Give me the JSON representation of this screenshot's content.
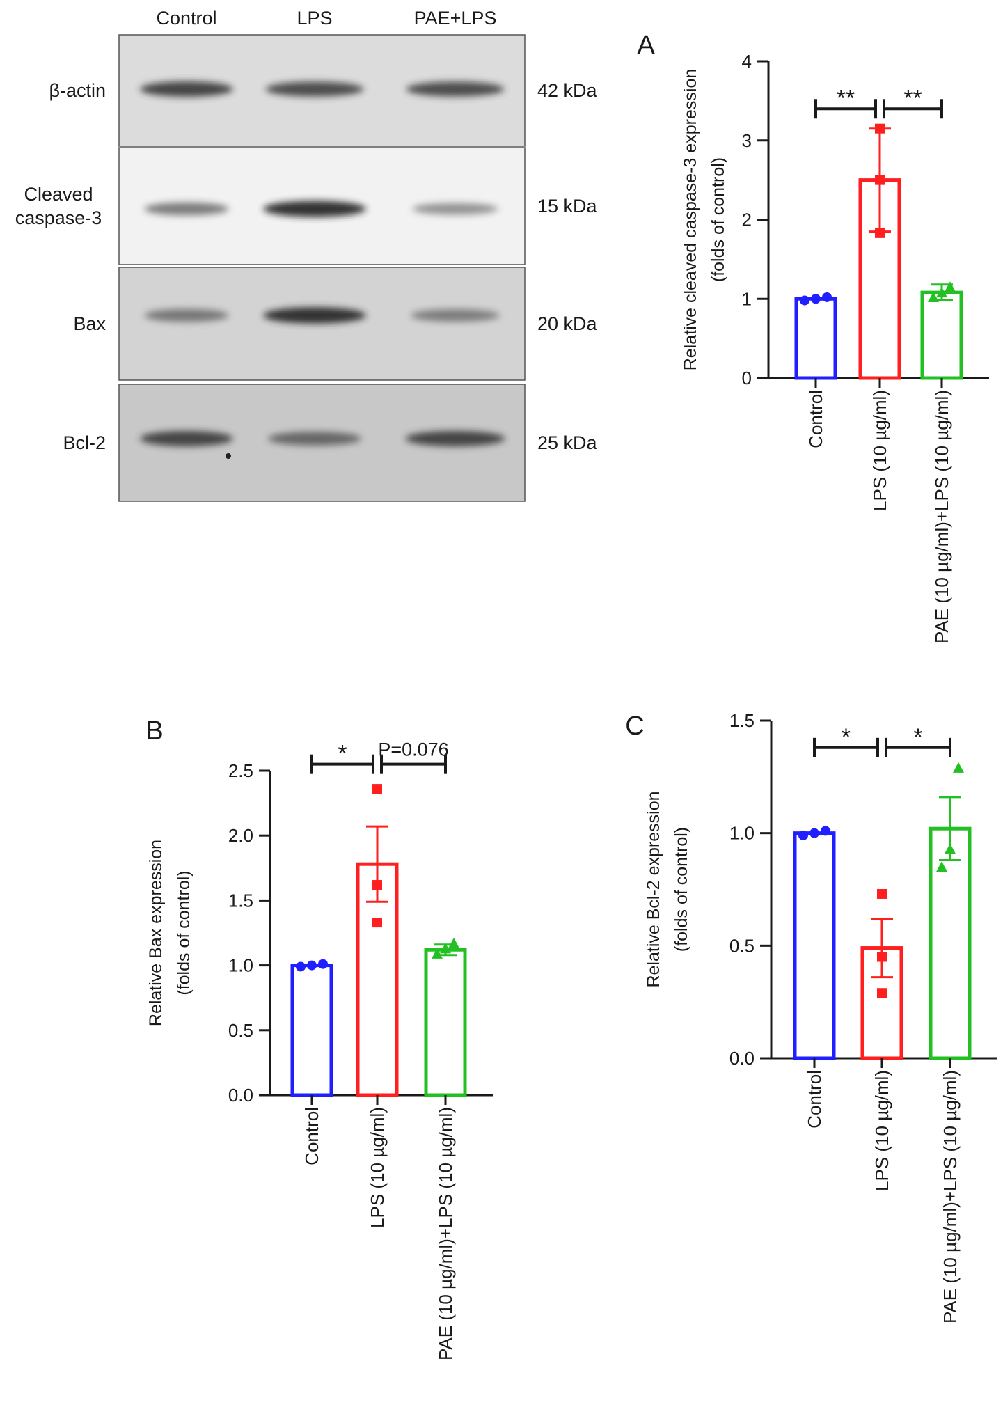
{
  "blot": {
    "lanes": [
      "Control",
      "LPS",
      "PAE+LPS"
    ],
    "rows": [
      {
        "label_lines": [
          "β-actin"
        ],
        "kda": "42 kDa",
        "band_intensity": [
          0.85,
          0.8,
          0.8
        ]
      },
      {
        "label_lines": [
          "Cleaved",
          "caspase-3"
        ],
        "kda": "15 kDa",
        "band_intensity": [
          0.55,
          0.95,
          0.4
        ]
      },
      {
        "label_lines": [
          "Bax"
        ],
        "kda": "20 kDa",
        "band_intensity": [
          0.55,
          0.95,
          0.5
        ]
      },
      {
        "label_lines": [
          "Bcl-2"
        ],
        "kda": "25 kDa",
        "band_intensity": [
          0.85,
          0.65,
          0.85
        ]
      }
    ]
  },
  "colors": {
    "control": "#1f1fff",
    "lps": "#ff1f1f",
    "pae_lps": "#22c022"
  },
  "chart_data": [
    {
      "panel": "A",
      "type": "bar",
      "ylabel": [
        "Relative cleaved caspase-3 expression",
        "(folds of control)"
      ],
      "categories": [
        "Control",
        "LPS (10 µg/ml)",
        "PAE (10 µg/ml)+LPS (10 µg/ml)"
      ],
      "values": [
        1.0,
        2.5,
        1.08
      ],
      "errors": [
        0.0,
        0.65,
        0.1
      ],
      "points": [
        [
          0.98,
          1.0,
          1.02
        ],
        [
          1.83,
          2.5,
          3.15
        ],
        [
          1.02,
          1.08,
          1.15
        ]
      ],
      "markers": [
        "circle",
        "square",
        "triangle"
      ],
      "ylim": [
        0,
        4
      ],
      "yticks": [
        "0",
        "1",
        "2",
        "3",
        "4"
      ],
      "tick_values": [
        0,
        1,
        2,
        3,
        4
      ],
      "significance": [
        {
          "from": 0,
          "to": 1,
          "label": "**",
          "y": 3.4
        },
        {
          "from": 1,
          "to": 2,
          "label": "**",
          "y": 3.4
        }
      ]
    },
    {
      "panel": "B",
      "type": "bar",
      "ylabel": [
        "Relative Bax expression",
        "(folds of control)"
      ],
      "categories": [
        "Control",
        "LPS (10 µg/ml)",
        "PAE (10 µg/ml)+LPS (10 µg/ml)"
      ],
      "values": [
        1.0,
        1.78,
        1.12
      ],
      "errors": [
        0.0,
        0.29,
        0.04
      ],
      "points": [
        [
          0.99,
          1.0,
          1.01
        ],
        [
          1.33,
          1.62,
          2.36
        ],
        [
          1.09,
          1.13,
          1.17
        ]
      ],
      "markers": [
        "circle",
        "square",
        "triangle"
      ],
      "ylim": [
        0,
        2.5
      ],
      "yticks": [
        "0.0",
        "0.5",
        "1.0",
        "1.5",
        "2.0",
        "2.5"
      ],
      "tick_values": [
        0,
        0.5,
        1.0,
        1.5,
        2.0,
        2.5
      ],
      "significance": [
        {
          "from": 0,
          "to": 1,
          "label": "*",
          "y": 2.55
        },
        {
          "from": 1,
          "to": 2,
          "label": "P=0.076",
          "y": 2.55
        }
      ]
    },
    {
      "panel": "C",
      "type": "bar",
      "ylabel": [
        "Relative Bcl-2 expression",
        "(folds of control)"
      ],
      "categories": [
        "Control",
        "LPS (10 µg/ml)",
        "PAE (10 µg/ml)+LPS (10 µg/ml)"
      ],
      "values": [
        1.0,
        0.49,
        1.02
      ],
      "errors": [
        0.0,
        0.13,
        0.14
      ],
      "points": [
        [
          0.99,
          1.0,
          1.01
        ],
        [
          0.29,
          0.45,
          0.73
        ],
        [
          0.85,
          0.93,
          1.29
        ]
      ],
      "markers": [
        "circle",
        "square",
        "triangle"
      ],
      "ylim": [
        0,
        1.5
      ],
      "yticks": [
        "0.0",
        "0.5",
        "1.0",
        "1.5"
      ],
      "tick_values": [
        0,
        0.5,
        1.0,
        1.5
      ],
      "significance": [
        {
          "from": 0,
          "to": 1,
          "label": "*",
          "y": 1.38
        },
        {
          "from": 1,
          "to": 2,
          "label": "*",
          "y": 1.38
        }
      ]
    }
  ]
}
